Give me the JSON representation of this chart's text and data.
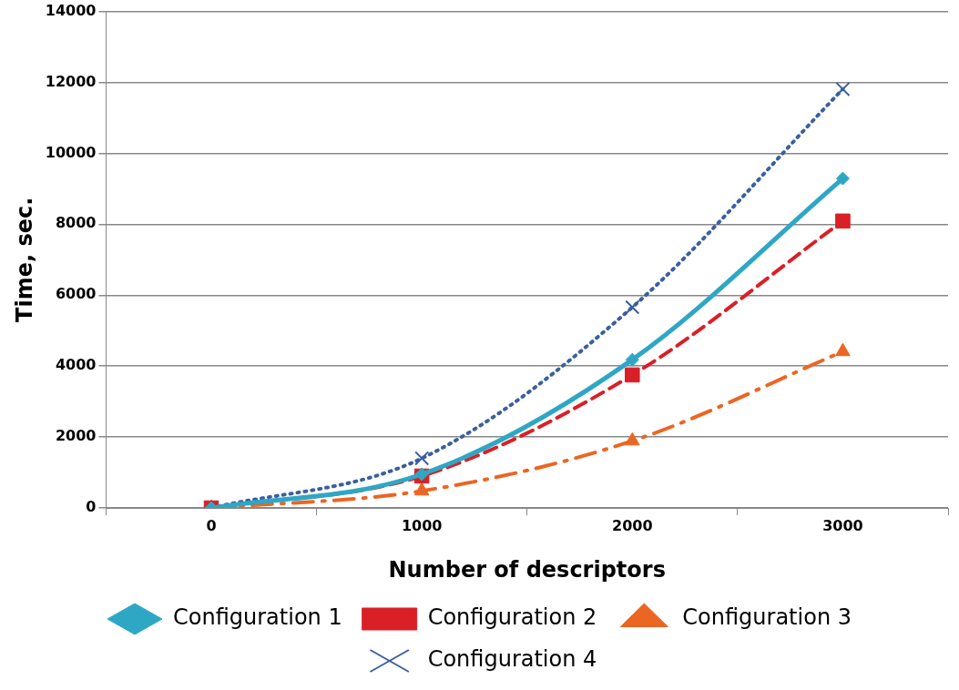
{
  "chart_data": {
    "type": "line",
    "xlabel": "Number of descriptors",
    "ylabel": "Time, sec.",
    "categories": [
      "0",
      "1000",
      "2000",
      "3000"
    ],
    "ylim": [
      0,
      14000
    ],
    "yticks": [
      0,
      2000,
      4000,
      6000,
      8000,
      10000,
      12000,
      14000
    ],
    "grid": "y",
    "legend": "bottom",
    "series": [
      {
        "name": "Configuration 1",
        "color": "#2ea7c4",
        "values": [
          0,
          950,
          4180,
          9290
        ],
        "marker": "diamond",
        "line_style": "solid"
      },
      {
        "name": "Configuration 2",
        "color": "#d92027",
        "values": [
          0,
          900,
          3750,
          8090
        ],
        "marker": "square",
        "line_style": "dashed"
      },
      {
        "name": "Configuration 3",
        "color": "#eb6622",
        "values": [
          0,
          480,
          1890,
          4410
        ],
        "marker": "triangle",
        "line_style": "dashdot"
      },
      {
        "name": "Configuration 4",
        "color": "#3a5fa0",
        "values": [
          0,
          1400,
          5660,
          11810
        ],
        "marker": "cross",
        "line_style": "dotted"
      }
    ]
  }
}
